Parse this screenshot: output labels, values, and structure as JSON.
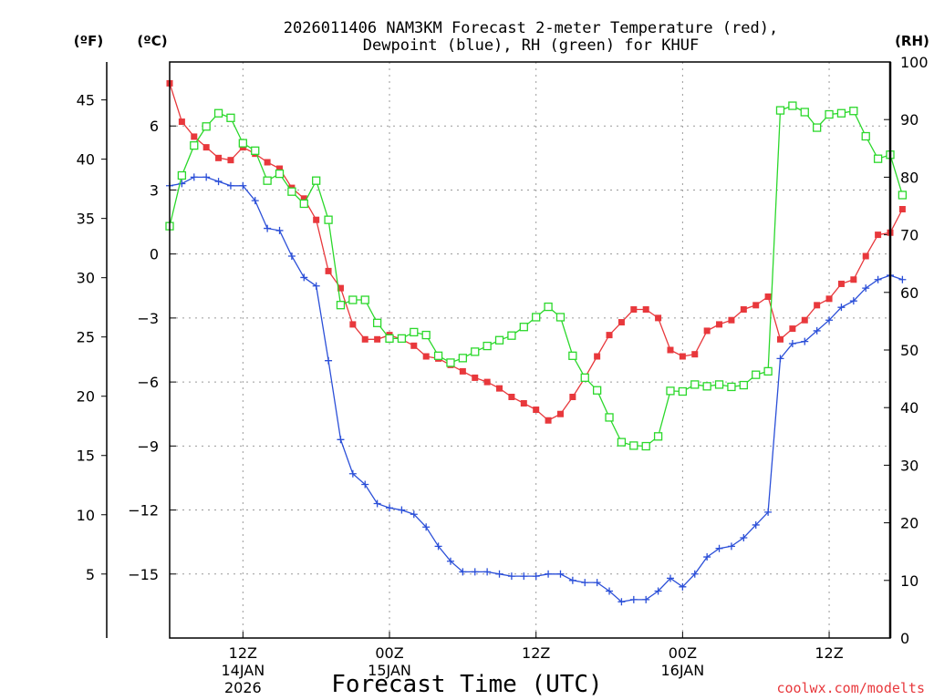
{
  "chart_data": {
    "type": "line",
    "title_line1": "2026011406 NAM3KM Forecast 2-meter Temperature (red),",
    "title_line2": "Dewpoint (blue), RH (green) for KHUF",
    "xlabel": "Forecast Time (UTC)",
    "credit": "coolwx.com/modelts",
    "units_f": "(ºF)",
    "units_c": "(ºC)",
    "units_rh": "(RH)",
    "x_range_hours": [
      0,
      59
    ],
    "x_ticks": [
      {
        "hour": 6,
        "line1": "12Z",
        "line2": "14JAN",
        "line3": "2026"
      },
      {
        "hour": 18,
        "line1": "00Z",
        "line2": "15JAN",
        "line3": ""
      },
      {
        "hour": 30,
        "line1": "12Z",
        "line2": "",
        "line3": ""
      },
      {
        "hour": 42,
        "line1": "00Z",
        "line2": "16JAN",
        "line3": ""
      },
      {
        "hour": 54,
        "line1": "12Z",
        "line2": "",
        "line3": ""
      }
    ],
    "celsius_axis": {
      "range": [
        -18,
        9
      ],
      "ticks": [
        6,
        3,
        0,
        -3,
        -6,
        -9,
        -12,
        -15
      ]
    },
    "fahrenheit_axis": {
      "ticks": [
        45,
        40,
        35,
        30,
        25,
        20,
        15,
        10,
        5
      ]
    },
    "rh_axis": {
      "range": [
        0,
        100
      ],
      "ticks": [
        0,
        10,
        20,
        30,
        40,
        50,
        60,
        70,
        80,
        90,
        100
      ]
    },
    "series": [
      {
        "name": "2-meter Temperature (°C)",
        "axis": "celsius",
        "color": "#e8383c",
        "marker": "filled-square",
        "values": [
          8.0,
          6.2,
          5.5,
          5.0,
          4.5,
          4.4,
          5.0,
          4.7,
          4.3,
          4.0,
          3.1,
          2.6,
          1.6,
          -0.8,
          -1.6,
          -3.3,
          -4.0,
          -4.0,
          -3.8,
          -4.0,
          -4.3,
          -4.8,
          -4.9,
          -5.2,
          -5.5,
          -5.8,
          -6.0,
          -6.3,
          -6.7,
          -7.0,
          -7.3,
          -7.8,
          -7.5,
          -6.7,
          -5.8,
          -4.8,
          -3.8,
          -3.2,
          -2.6,
          -2.6,
          -3.0,
          -4.5,
          -4.8,
          -4.7,
          -3.6,
          -3.3,
          -3.1,
          -2.6,
          -2.4,
          -2.0,
          -4.0,
          -3.5,
          -3.1,
          -2.4,
          -2.1,
          -1.4,
          -1.2,
          -0.1,
          0.9,
          1.0,
          2.1
        ]
      },
      {
        "name": "Dewpoint (°C)",
        "axis": "celsius",
        "color": "#2b4fd8",
        "marker": "plus",
        "values": [
          3.2,
          3.3,
          3.6,
          3.6,
          3.4,
          3.2,
          3.2,
          2.5,
          1.2,
          1.1,
          -0.1,
          -1.1,
          -1.5,
          -5.0,
          -8.7,
          -10.3,
          -10.8,
          -11.7,
          -11.9,
          -12.0,
          -12.2,
          -12.8,
          -13.7,
          -14.4,
          -14.9,
          -14.9,
          -14.9,
          -15.0,
          -15.1,
          -15.1,
          -15.1,
          -15.0,
          -15.0,
          -15.3,
          -15.4,
          -15.4,
          -15.8,
          -16.3,
          -16.2,
          -16.2,
          -15.8,
          -15.2,
          -15.6,
          -15.0,
          -14.2,
          -13.8,
          -13.7,
          -13.3,
          -12.7,
          -12.1,
          -4.9,
          -4.2,
          -4.1,
          -3.6,
          -3.1,
          -2.5,
          -2.2,
          -1.6,
          -1.2,
          -1.0,
          -1.2
        ]
      },
      {
        "name": "RH (%)",
        "axis": "rh",
        "color": "#2bd82b",
        "marker": "open-square",
        "values": [
          71.5,
          80.3,
          85.5,
          88.8,
          91.1,
          90.3,
          85.9,
          84.6,
          79.4,
          80.6,
          77.5,
          75.4,
          79.4,
          72.6,
          57.8,
          58.7,
          58.7,
          54.7,
          52.0,
          52.0,
          53.1,
          52.6,
          49.0,
          47.8,
          48.6,
          49.7,
          50.7,
          51.7,
          52.5,
          54.0,
          55.7,
          57.5,
          55.7,
          49.0,
          45.2,
          43.0,
          38.3,
          34.0,
          33.4,
          33.3,
          35.0,
          42.9,
          42.8,
          44.0,
          43.7,
          44.0,
          43.6,
          43.9,
          45.7,
          46.3,
          91.6,
          92.4,
          91.3,
          88.6,
          90.9,
          91.1,
          91.5,
          87.1,
          83.2,
          83.9,
          76.9
        ]
      }
    ]
  }
}
